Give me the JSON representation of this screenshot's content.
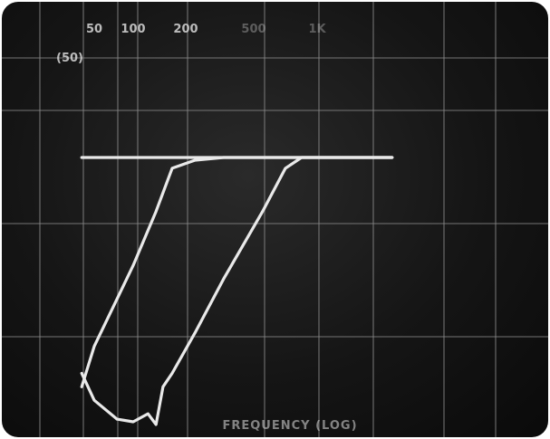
{
  "chart_data": {
    "type": "line",
    "title": "",
    "xlabel": "FREQUENCY (LOG)",
    "ylabel": "",
    "x_scale": "log",
    "grid": true,
    "x_tick_labels": [
      "50",
      "100",
      "200",
      "500",
      "1K"
    ],
    "y_tick_labels": [
      "(50)"
    ],
    "series": [
      {
        "x": [
          40,
          50,
          100,
          200,
          500,
          1000,
          1500,
          3000,
          10000
        ],
        "y": [
          100,
          100,
          100,
          100,
          100,
          100,
          100,
          100,
          100
        ]
      },
      {
        "x": [
          40,
          50,
          100,
          150,
          200,
          300,
          500,
          1000,
          2000,
          10000
        ],
        "y": [
          15,
          30,
          60,
          80,
          96,
          99,
          100,
          100,
          100,
          100
        ]
      },
      {
        "x": [
          40,
          50,
          75,
          100,
          130,
          150,
          170,
          200,
          300,
          500,
          1000,
          1500,
          2000,
          10000
        ],
        "y": [
          20,
          10,
          3,
          2,
          5,
          1,
          15,
          20,
          35,
          55,
          80,
          96,
          100,
          100
        ]
      }
    ]
  },
  "colors": {
    "trace": "#e9e9e9",
    "grid": "#8a8a8a",
    "screen": "#151515"
  }
}
